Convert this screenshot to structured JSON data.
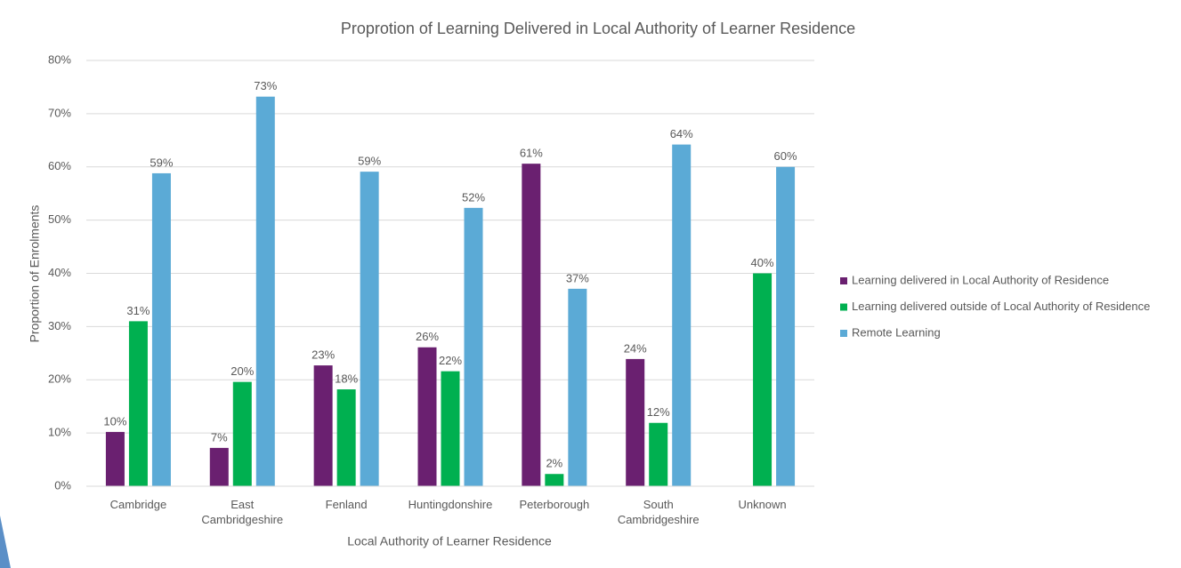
{
  "chart_data": {
    "type": "bar",
    "title": "Proprotion of Learning Delivered in Local Authority of Learner Residence",
    "x_label": "Local Authority of Learner Residence",
    "y_label": "Proportion of Enrolments",
    "categories": [
      "Cambridge",
      "East Cambridgeshire",
      "Fenland",
      "Huntingdonshire",
      "Peterborough",
      "South Cambridgeshire",
      "Unknown"
    ],
    "series": [
      {
        "name": "Learning delivered in Local Authority of Residence",
        "color": "#6a2070",
        "values": [
          10.2,
          7.2,
          22.7,
          26.1,
          60.6,
          23.9,
          null
        ],
        "value_labels": [
          "10%",
          "7%",
          "23%",
          "26%",
          "61%",
          "24%",
          null
        ]
      },
      {
        "name": "Learning delivered outside of Local Authority of Residence",
        "color": "#00b050",
        "values": [
          31,
          19.6,
          18.2,
          21.6,
          2.3,
          11.9,
          40
        ],
        "value_labels": [
          "31%",
          "20%",
          "18%",
          "22%",
          "2%",
          "12%",
          "40%"
        ]
      },
      {
        "name": "Remote Learning",
        "color": "#5baad6",
        "values": [
          58.8,
          73.2,
          59.1,
          52.3,
          37.1,
          64.2,
          60
        ],
        "value_labels": [
          "59%",
          "73%",
          "59%",
          "52%",
          "37%",
          "64%",
          "60%"
        ]
      }
    ],
    "ylim": [
      0,
      80
    ],
    "yticks": [
      {
        "value": 0,
        "label": "0%"
      },
      {
        "value": 10,
        "label": "10%"
      },
      {
        "value": 20,
        "label": "20%"
      },
      {
        "value": 30,
        "label": "30%"
      },
      {
        "value": 40,
        "label": "40%"
      },
      {
        "value": 50,
        "label": "50%"
      },
      {
        "value": 60,
        "label": "60%"
      },
      {
        "value": 70,
        "label": "70%"
      },
      {
        "value": 80,
        "label": "80%"
      }
    ],
    "grid": true,
    "legend": "right"
  }
}
